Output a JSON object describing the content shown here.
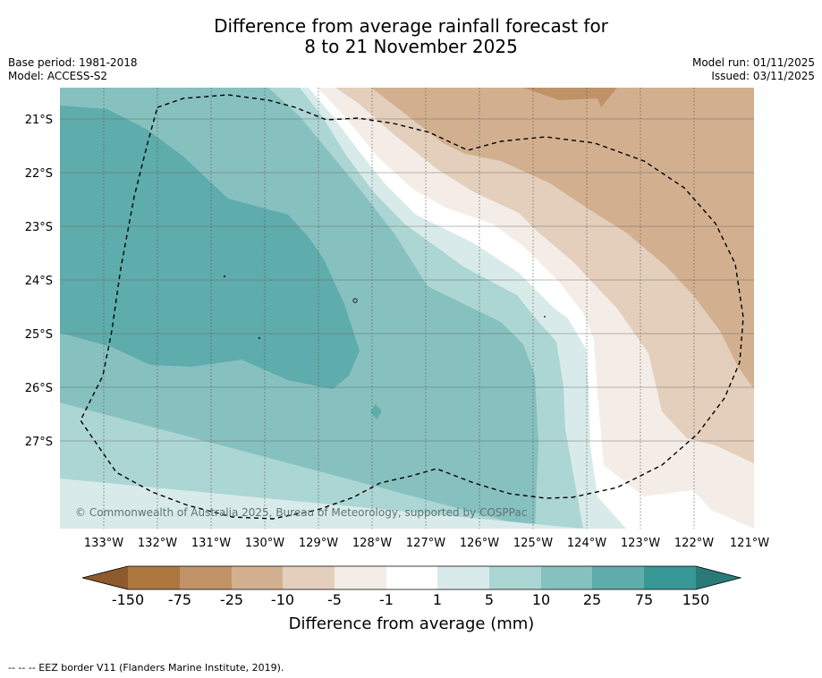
{
  "title": {
    "line1": "Difference from average rainfall forecast for",
    "line2": "8 to 21 November 2025"
  },
  "meta_left": {
    "base_period": "Base period: 1981-2018",
    "model": "Model: ACCESS-S2"
  },
  "meta_right": {
    "model_run": "Model run: 01/11/2025",
    "issued": "Issued: 03/11/2025"
  },
  "map": {
    "lat_labels": [
      "21°S",
      "22°S",
      "23°S",
      "24°S",
      "25°S",
      "26°S",
      "27°S"
    ],
    "lon_labels": [
      "133°W",
      "132°W",
      "131°W",
      "130°W",
      "129°W",
      "128°W",
      "127°W",
      "126°W",
      "125°W",
      "124°W",
      "123°W",
      "122°W",
      "121°W"
    ],
    "copyright": "© Commonwealth of Australia 2025, Bureau of Meteorology, supported by COSPPac"
  },
  "legend": {
    "ticks": [
      "-150",
      "-75",
      "-25",
      "-10",
      "-5",
      "-1",
      "1",
      "5",
      "10",
      "25",
      "75",
      "150"
    ],
    "colors": [
      "#8c5a2c",
      "#ad773f",
      "#c09268",
      "#d2b08f",
      "#e4cfbc",
      "#f4ede7",
      "#ffffff",
      "#d8ebea",
      "#acd6d4",
      "#86c1bf",
      "#5eacab",
      "#379896",
      "#2a7a78"
    ],
    "label": "Difference from average (mm)"
  },
  "footer": "--  --  -- EEZ border V11 (Flanders Marine Institute, 2019)."
}
